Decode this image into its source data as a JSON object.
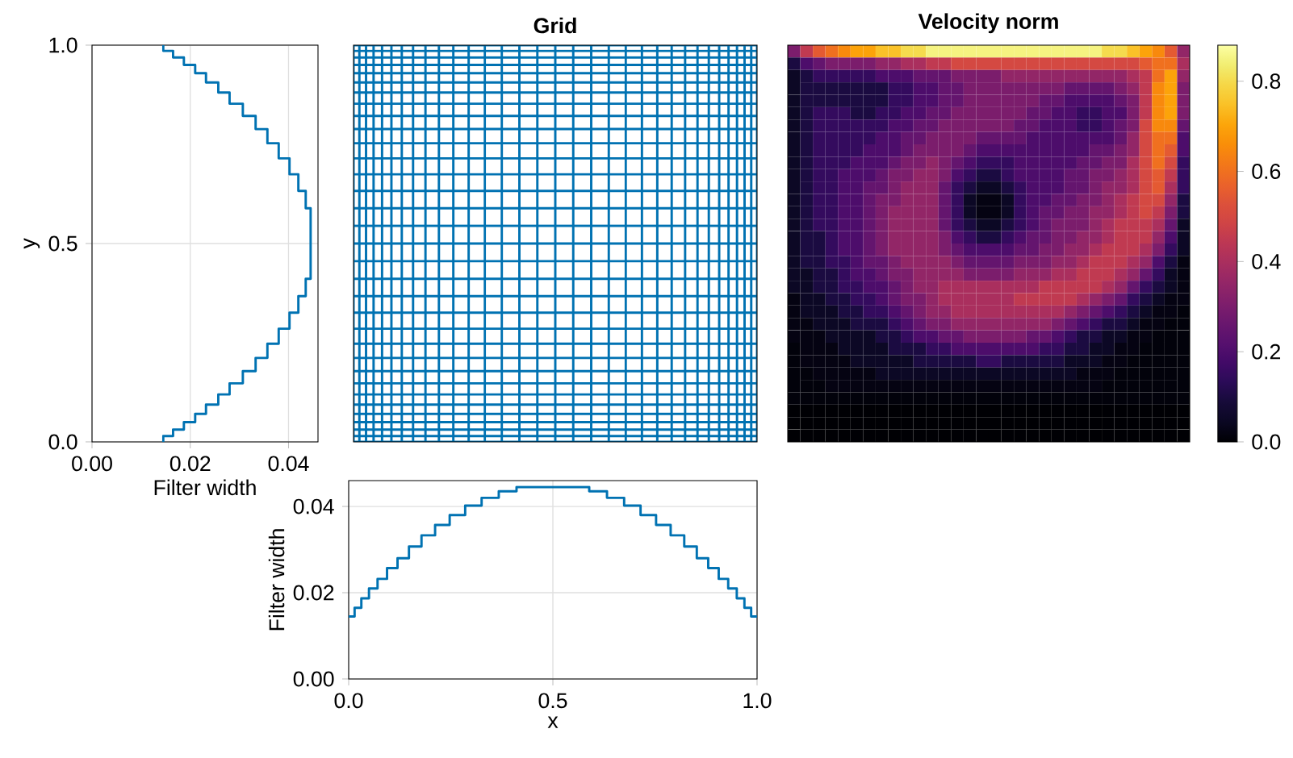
{
  "chart_data": [
    {
      "type": "step",
      "orientation": "horizontal",
      "xlabel": "Filter width",
      "ylabel": "y",
      "color": "#0072b2",
      "grid": true,
      "x": [
        0,
        0.0145,
        0.031,
        0.0497,
        0.0707,
        0.0939,
        0.1196,
        0.1476,
        0.1783,
        0.2116,
        0.2473,
        0.2853,
        0.3255,
        0.3675,
        0.411,
        0.4555,
        0.5,
        0.5445,
        0.589,
        0.6325,
        0.6745,
        0.7147,
        0.7527,
        0.7884,
        0.8217,
        0.8524,
        0.8804,
        0.9061,
        0.9293,
        0.9503,
        0.969,
        0.9855,
        1
      ],
      "values": [
        0.0145,
        0.0165,
        0.0187,
        0.021,
        0.0232,
        0.0257,
        0.028,
        0.0307,
        0.0333,
        0.0357,
        0.038,
        0.0402,
        0.042,
        0.0435,
        0.0445,
        0.0445,
        0.0445,
        0.0445,
        0.0435,
        0.042,
        0.0402,
        0.038,
        0.0357,
        0.0333,
        0.0307,
        0.028,
        0.0257,
        0.0232,
        0.021,
        0.0187,
        0.0165,
        0.0145,
        0.0145
      ],
      "xlim": [
        0,
        0.046
      ],
      "xticks": [
        {
          "value": 0,
          "label": "0.00"
        },
        {
          "value": 0.02,
          "label": "0.02"
        },
        {
          "value": 0.04,
          "label": "0.04"
        }
      ],
      "ylim": [
        0,
        1
      ],
      "yticks": [
        {
          "value": 0,
          "label": "0.0"
        },
        {
          "value": 0.5,
          "label": "0.5"
        },
        {
          "value": 1,
          "label": "1.0"
        }
      ]
    },
    {
      "type": "other",
      "title": "Grid"
    },
    {
      "type": "heatmap",
      "title": "Velocity norm",
      "tick_labels": false,
      "categories": [
        null,
        null,
        null,
        null,
        null,
        null,
        null,
        null,
        null,
        null,
        null,
        null,
        null,
        null,
        null,
        null,
        null,
        null,
        null,
        null,
        null,
        null,
        null,
        null,
        null,
        null,
        null,
        null,
        null,
        null,
        null,
        null
      ],
      "y_categories": [
        null,
        null,
        null,
        null,
        null,
        null,
        null,
        null,
        null,
        null,
        null,
        null,
        null,
        null,
        null,
        null,
        null,
        null,
        null,
        null,
        null,
        null,
        null,
        null,
        null,
        null,
        null,
        null,
        null,
        null,
        null,
        null
      ],
      "clim": [
        0,
        0.88
      ],
      "cticks": [
        {
          "value": 0,
          "label": "0.0"
        },
        {
          "value": 0.2,
          "label": "0.2"
        },
        {
          "value": 0.4,
          "label": "0.4"
        },
        {
          "value": 0.6,
          "label": "0.6"
        },
        {
          "value": 0.8,
          "label": "0.8"
        }
      ],
      "cells": [
        [
          0.3,
          0.45,
          0.55,
          0.6,
          0.65,
          0.7,
          0.7,
          0.75,
          0.75,
          0.8,
          0.8,
          0.85,
          0.85,
          0.85,
          0.85,
          0.85,
          0.85,
          0.85,
          0.85,
          0.85,
          0.85,
          0.85,
          0.85,
          0.85,
          0.85,
          0.8,
          0.8,
          0.75,
          0.7,
          0.65,
          0.55,
          0.35
        ],
        [
          0.1,
          0.2,
          0.25,
          0.3,
          0.3,
          0.3,
          0.3,
          0.35,
          0.35,
          0.4,
          0.4,
          0.45,
          0.45,
          0.5,
          0.5,
          0.5,
          0.5,
          0.5,
          0.5,
          0.5,
          0.5,
          0.5,
          0.5,
          0.5,
          0.5,
          0.5,
          0.5,
          0.5,
          0.55,
          0.6,
          0.6,
          0.4
        ],
        [
          0.05,
          0.1,
          0.15,
          0.15,
          0.15,
          0.15,
          0.15,
          0.2,
          0.2,
          0.2,
          0.25,
          0.25,
          0.25,
          0.3,
          0.3,
          0.3,
          0.3,
          0.35,
          0.35,
          0.35,
          0.35,
          0.35,
          0.35,
          0.35,
          0.35,
          0.35,
          0.35,
          0.4,
          0.45,
          0.6,
          0.7,
          0.35
        ],
        [
          0.05,
          0.1,
          0.1,
          0.1,
          0.1,
          0.1,
          0.1,
          0.1,
          0.15,
          0.15,
          0.2,
          0.2,
          0.25,
          0.25,
          0.3,
          0.3,
          0.3,
          0.3,
          0.3,
          0.3,
          0.3,
          0.3,
          0.25,
          0.25,
          0.25,
          0.25,
          0.3,
          0.35,
          0.45,
          0.65,
          0.7,
          0.3
        ],
        [
          0.05,
          0.1,
          0.1,
          0.1,
          0.1,
          0.1,
          0.1,
          0.1,
          0.15,
          0.15,
          0.2,
          0.2,
          0.25,
          0.25,
          0.3,
          0.3,
          0.3,
          0.3,
          0.3,
          0.3,
          0.25,
          0.25,
          0.2,
          0.2,
          0.2,
          0.2,
          0.25,
          0.3,
          0.45,
          0.65,
          0.7,
          0.3
        ],
        [
          0.05,
          0.1,
          0.15,
          0.15,
          0.15,
          0.1,
          0.1,
          0.15,
          0.15,
          0.2,
          0.2,
          0.25,
          0.25,
          0.3,
          0.3,
          0.3,
          0.3,
          0.3,
          0.3,
          0.25,
          0.25,
          0.2,
          0.2,
          0.15,
          0.15,
          0.2,
          0.2,
          0.3,
          0.45,
          0.65,
          0.7,
          0.3
        ],
        [
          0.05,
          0.1,
          0.15,
          0.15,
          0.15,
          0.15,
          0.15,
          0.15,
          0.2,
          0.2,
          0.25,
          0.25,
          0.3,
          0.3,
          0.3,
          0.3,
          0.3,
          0.3,
          0.25,
          0.25,
          0.2,
          0.2,
          0.2,
          0.15,
          0.15,
          0.2,
          0.25,
          0.3,
          0.5,
          0.65,
          0.65,
          0.25
        ],
        [
          0.05,
          0.1,
          0.15,
          0.15,
          0.15,
          0.15,
          0.15,
          0.2,
          0.2,
          0.25,
          0.25,
          0.3,
          0.3,
          0.3,
          0.3,
          0.25,
          0.25,
          0.25,
          0.25,
          0.2,
          0.2,
          0.2,
          0.2,
          0.2,
          0.2,
          0.2,
          0.25,
          0.35,
          0.5,
          0.6,
          0.6,
          0.2
        ],
        [
          0.05,
          0.1,
          0.15,
          0.15,
          0.15,
          0.15,
          0.2,
          0.2,
          0.2,
          0.25,
          0.3,
          0.3,
          0.3,
          0.3,
          0.25,
          0.2,
          0.2,
          0.2,
          0.2,
          0.2,
          0.2,
          0.2,
          0.2,
          0.2,
          0.25,
          0.25,
          0.3,
          0.35,
          0.5,
          0.6,
          0.55,
          0.2
        ],
        [
          0.05,
          0.1,
          0.15,
          0.15,
          0.15,
          0.2,
          0.2,
          0.2,
          0.25,
          0.3,
          0.3,
          0.35,
          0.3,
          0.25,
          0.2,
          0.15,
          0.15,
          0.15,
          0.2,
          0.2,
          0.2,
          0.2,
          0.2,
          0.25,
          0.25,
          0.3,
          0.3,
          0.4,
          0.5,
          0.6,
          0.5,
          0.15
        ],
        [
          0.05,
          0.1,
          0.15,
          0.15,
          0.2,
          0.2,
          0.2,
          0.25,
          0.3,
          0.3,
          0.35,
          0.35,
          0.3,
          0.2,
          0.15,
          0.1,
          0.1,
          0.15,
          0.2,
          0.2,
          0.2,
          0.2,
          0.25,
          0.25,
          0.3,
          0.3,
          0.35,
          0.4,
          0.5,
          0.55,
          0.45,
          0.15
        ],
        [
          0.05,
          0.1,
          0.15,
          0.15,
          0.2,
          0.2,
          0.25,
          0.25,
          0.3,
          0.35,
          0.35,
          0.35,
          0.25,
          0.15,
          0.1,
          0.05,
          0.05,
          0.1,
          0.15,
          0.2,
          0.2,
          0.2,
          0.25,
          0.25,
          0.3,
          0.35,
          0.35,
          0.4,
          0.5,
          0.55,
          0.4,
          0.15
        ],
        [
          0.05,
          0.1,
          0.15,
          0.15,
          0.2,
          0.2,
          0.25,
          0.3,
          0.3,
          0.35,
          0.35,
          0.35,
          0.25,
          0.15,
          0.05,
          0.02,
          0.02,
          0.05,
          0.15,
          0.2,
          0.2,
          0.25,
          0.25,
          0.3,
          0.3,
          0.35,
          0.4,
          0.45,
          0.5,
          0.5,
          0.35,
          0.1
        ],
        [
          0.05,
          0.1,
          0.15,
          0.15,
          0.2,
          0.2,
          0.25,
          0.3,
          0.35,
          0.35,
          0.35,
          0.35,
          0.25,
          0.15,
          0.05,
          0.02,
          0.02,
          0.05,
          0.15,
          0.2,
          0.25,
          0.25,
          0.3,
          0.3,
          0.35,
          0.35,
          0.4,
          0.45,
          0.5,
          0.45,
          0.3,
          0.1
        ],
        [
          0.05,
          0.1,
          0.15,
          0.15,
          0.2,
          0.2,
          0.25,
          0.3,
          0.35,
          0.35,
          0.35,
          0.35,
          0.25,
          0.15,
          0.1,
          0.05,
          0.05,
          0.1,
          0.15,
          0.2,
          0.25,
          0.3,
          0.3,
          0.3,
          0.35,
          0.4,
          0.45,
          0.45,
          0.45,
          0.4,
          0.25,
          0.05
        ],
        [
          0.05,
          0.1,
          0.1,
          0.15,
          0.2,
          0.2,
          0.25,
          0.3,
          0.35,
          0.35,
          0.35,
          0.35,
          0.3,
          0.2,
          0.15,
          0.1,
          0.1,
          0.15,
          0.2,
          0.25,
          0.25,
          0.3,
          0.3,
          0.35,
          0.35,
          0.4,
          0.45,
          0.45,
          0.45,
          0.35,
          0.2,
          0.05
        ],
        [
          0.05,
          0.1,
          0.1,
          0.15,
          0.2,
          0.2,
          0.25,
          0.3,
          0.35,
          0.35,
          0.35,
          0.35,
          0.3,
          0.25,
          0.2,
          0.2,
          0.2,
          0.2,
          0.25,
          0.25,
          0.3,
          0.3,
          0.35,
          0.35,
          0.4,
          0.45,
          0.45,
          0.45,
          0.4,
          0.3,
          0.15,
          0.05
        ],
        [
          0.05,
          0.1,
          0.1,
          0.15,
          0.15,
          0.2,
          0.25,
          0.25,
          0.3,
          0.35,
          0.35,
          0.35,
          0.35,
          0.3,
          0.25,
          0.25,
          0.25,
          0.25,
          0.3,
          0.3,
          0.3,
          0.35,
          0.35,
          0.4,
          0.45,
          0.45,
          0.45,
          0.4,
          0.35,
          0.2,
          0.1,
          0.02
        ],
        [
          0.05,
          0.05,
          0.1,
          0.1,
          0.15,
          0.2,
          0.2,
          0.25,
          0.3,
          0.3,
          0.35,
          0.35,
          0.35,
          0.35,
          0.3,
          0.3,
          0.3,
          0.3,
          0.35,
          0.35,
          0.35,
          0.4,
          0.4,
          0.45,
          0.45,
          0.45,
          0.4,
          0.35,
          0.25,
          0.15,
          0.05,
          0.02
        ],
        [
          0.05,
          0.05,
          0.1,
          0.1,
          0.15,
          0.15,
          0.2,
          0.2,
          0.25,
          0.3,
          0.35,
          0.35,
          0.4,
          0.4,
          0.4,
          0.4,
          0.4,
          0.4,
          0.4,
          0.4,
          0.45,
          0.45,
          0.45,
          0.45,
          0.45,
          0.4,
          0.35,
          0.25,
          0.15,
          0.1,
          0.05,
          0.02
        ],
        [
          0.02,
          0.05,
          0.05,
          0.1,
          0.1,
          0.15,
          0.15,
          0.2,
          0.25,
          0.3,
          0.3,
          0.35,
          0.4,
          0.4,
          0.4,
          0.4,
          0.4,
          0.4,
          0.45,
          0.45,
          0.45,
          0.45,
          0.45,
          0.4,
          0.35,
          0.3,
          0.25,
          0.15,
          0.1,
          0.05,
          0.02,
          0.02
        ],
        [
          0.02,
          0.05,
          0.05,
          0.05,
          0.1,
          0.1,
          0.15,
          0.15,
          0.2,
          0.25,
          0.3,
          0.35,
          0.35,
          0.4,
          0.4,
          0.4,
          0.4,
          0.4,
          0.4,
          0.4,
          0.4,
          0.4,
          0.35,
          0.3,
          0.25,
          0.2,
          0.15,
          0.1,
          0.05,
          0.02,
          0.02,
          0.01
        ],
        [
          0.02,
          0.02,
          0.05,
          0.05,
          0.05,
          0.1,
          0.1,
          0.1,
          0.15,
          0.2,
          0.25,
          0.3,
          0.3,
          0.35,
          0.35,
          0.35,
          0.35,
          0.35,
          0.35,
          0.35,
          0.35,
          0.3,
          0.25,
          0.2,
          0.15,
          0.1,
          0.1,
          0.05,
          0.02,
          0.02,
          0.01,
          0.01
        ],
        [
          0.02,
          0.02,
          0.02,
          0.05,
          0.05,
          0.05,
          0.05,
          0.1,
          0.1,
          0.15,
          0.2,
          0.2,
          0.25,
          0.25,
          0.3,
          0.3,
          0.3,
          0.3,
          0.3,
          0.25,
          0.25,
          0.2,
          0.15,
          0.1,
          0.1,
          0.05,
          0.05,
          0.02,
          0.02,
          0.01,
          0.01,
          0.01
        ],
        [
          0.01,
          0.02,
          0.02,
          0.02,
          0.05,
          0.05,
          0.05,
          0.05,
          0.1,
          0.1,
          0.1,
          0.15,
          0.15,
          0.2,
          0.2,
          0.2,
          0.2,
          0.2,
          0.2,
          0.2,
          0.15,
          0.15,
          0.1,
          0.1,
          0.05,
          0.05,
          0.02,
          0.02,
          0.01,
          0.01,
          0.01,
          0.01
        ],
        [
          0.01,
          0.02,
          0.02,
          0.02,
          0.02,
          0.05,
          0.05,
          0.05,
          0.05,
          0.05,
          0.1,
          0.1,
          0.1,
          0.1,
          0.1,
          0.15,
          0.15,
          0.1,
          0.1,
          0.1,
          0.1,
          0.1,
          0.05,
          0.05,
          0.05,
          0.02,
          0.02,
          0.01,
          0.01,
          0.01,
          0.01,
          0.01
        ],
        [
          0.01,
          0.01,
          0.02,
          0.02,
          0.02,
          0.02,
          0.02,
          0.05,
          0.05,
          0.05,
          0.05,
          0.05,
          0.05,
          0.05,
          0.05,
          0.05,
          0.05,
          0.05,
          0.05,
          0.05,
          0.05,
          0.05,
          0.05,
          0.02,
          0.02,
          0.02,
          0.01,
          0.01,
          0.01,
          0.01,
          0.01,
          0.01
        ],
        [
          0.01,
          0.01,
          0.01,
          0.02,
          0.02,
          0.02,
          0.02,
          0.02,
          0.02,
          0.02,
          0.02,
          0.02,
          0.02,
          0.02,
          0.02,
          0.02,
          0.02,
          0.02,
          0.02,
          0.02,
          0.02,
          0.02,
          0.02,
          0.02,
          0.02,
          0.01,
          0.01,
          0.01,
          0.01,
          0.01,
          0.01,
          0.01
        ],
        [
          0.01,
          0.01,
          0.01,
          0.01,
          0.01,
          0.01,
          0.01,
          0.01,
          0.01,
          0.01,
          0.01,
          0.01,
          0.01,
          0.01,
          0.01,
          0.01,
          0.01,
          0.01,
          0.01,
          0.01,
          0.01,
          0.01,
          0.01,
          0.01,
          0.01,
          0.01,
          0.01,
          0.01,
          0.01,
          0.01,
          0.01,
          0.01
        ],
        [
          0,
          0,
          0,
          0,
          0,
          0,
          0,
          0,
          0,
          0,
          0,
          0,
          0,
          0,
          0,
          0,
          0,
          0,
          0,
          0,
          0,
          0,
          0,
          0,
          0,
          0,
          0,
          0,
          0,
          0,
          0,
          0
        ],
        [
          0,
          0,
          0,
          0,
          0,
          0,
          0,
          0,
          0,
          0,
          0,
          0,
          0,
          0,
          0,
          0,
          0,
          0,
          0,
          0,
          0,
          0,
          0,
          0,
          0,
          0,
          0,
          0,
          0,
          0,
          0,
          0
        ],
        [
          0,
          0,
          0,
          0,
          0,
          0,
          0,
          0,
          0,
          0,
          0,
          0,
          0,
          0,
          0,
          0,
          0,
          0,
          0,
          0,
          0,
          0,
          0,
          0,
          0,
          0,
          0,
          0,
          0,
          0,
          0,
          0
        ]
      ]
    },
    {
      "type": "step",
      "xlabel": "x",
      "ylabel": "Filter width",
      "color": "#0072b2",
      "grid": true,
      "x": [
        0,
        0.0145,
        0.031,
        0.0497,
        0.0707,
        0.0939,
        0.1196,
        0.1476,
        0.1783,
        0.2116,
        0.2473,
        0.2853,
        0.3255,
        0.3675,
        0.411,
        0.4555,
        0.5,
        0.5445,
        0.589,
        0.6325,
        0.6745,
        0.7147,
        0.7527,
        0.7884,
        0.8217,
        0.8524,
        0.8804,
        0.9061,
        0.9293,
        0.9503,
        0.969,
        0.9855,
        1
      ],
      "values": [
        0.0145,
        0.0165,
        0.0187,
        0.021,
        0.0232,
        0.0257,
        0.028,
        0.0307,
        0.0333,
        0.0357,
        0.038,
        0.0402,
        0.042,
        0.0435,
        0.0445,
        0.0445,
        0.0445,
        0.0445,
        0.0435,
        0.042,
        0.0402,
        0.038,
        0.0357,
        0.0333,
        0.0307,
        0.028,
        0.0257,
        0.0232,
        0.021,
        0.0187,
        0.0165,
        0.0145,
        0.0145
      ],
      "xlim": [
        0,
        1
      ],
      "xticks": [
        {
          "value": 0,
          "label": "0.0"
        },
        {
          "value": 0.5,
          "label": "0.5"
        },
        {
          "value": 1,
          "label": "1.0"
        }
      ],
      "ylim": [
        0,
        0.046
      ],
      "yticks": [
        {
          "value": 0,
          "label": "0.00"
        },
        {
          "value": 0.02,
          "label": "0.02"
        },
        {
          "value": 0.04,
          "label": "0.04"
        }
      ]
    }
  ]
}
